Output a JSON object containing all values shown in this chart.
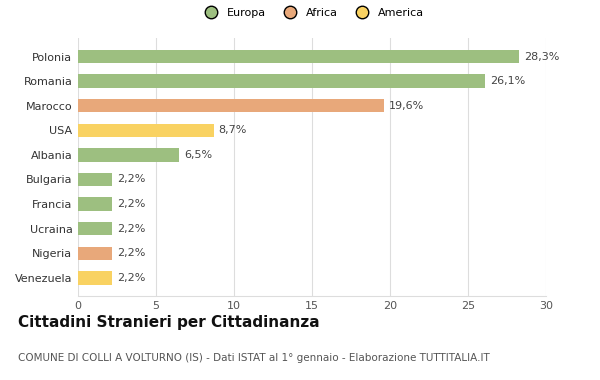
{
  "categories": [
    "Venezuela",
    "Nigeria",
    "Ucraina",
    "Francia",
    "Bulgaria",
    "Albania",
    "USA",
    "Marocco",
    "Romania",
    "Polonia"
  ],
  "values": [
    2.2,
    2.2,
    2.2,
    2.2,
    2.2,
    6.5,
    8.7,
    19.6,
    26.1,
    28.3
  ],
  "labels": [
    "2,2%",
    "2,2%",
    "2,2%",
    "2,2%",
    "2,2%",
    "6,5%",
    "8,7%",
    "19,6%",
    "26,1%",
    "28,3%"
  ],
  "colors": [
    "#f9d262",
    "#e8a87a",
    "#9dbf80",
    "#9dbf80",
    "#9dbf80",
    "#9dbf80",
    "#f9d262",
    "#e8a87a",
    "#9dbf80",
    "#9dbf80"
  ],
  "legend_labels": [
    "Europa",
    "Africa",
    "America"
  ],
  "legend_colors": [
    "#9dbf80",
    "#e8a87a",
    "#f9d262"
  ],
  "title": "Cittadini Stranieri per Cittadinanza",
  "subtitle": "COMUNE DI COLLI A VOLTURNO (IS) - Dati ISTAT al 1° gennaio - Elaborazione TUTTITALIA.IT",
  "xlim": [
    0,
    30
  ],
  "xticks": [
    0,
    5,
    10,
    15,
    20,
    25,
    30
  ],
  "background_color": "#ffffff",
  "grid_color": "#dddddd",
  "title_fontsize": 11,
  "subtitle_fontsize": 7.5,
  "label_fontsize": 8,
  "tick_fontsize": 8,
  "bar_height": 0.55
}
